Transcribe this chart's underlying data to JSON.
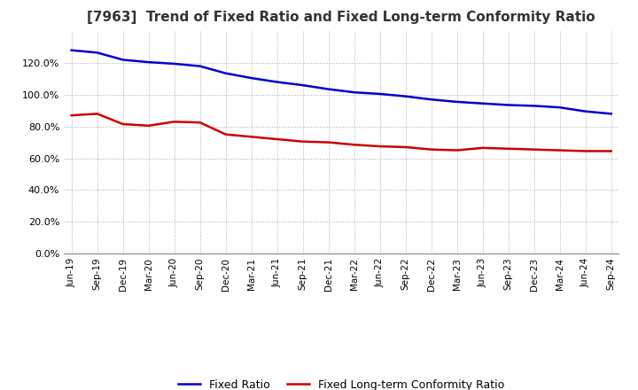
{
  "title": "[7963]  Trend of Fixed Ratio and Fixed Long-term Conformity Ratio",
  "title_fontsize": 11,
  "background_color": "#ffffff",
  "plot_bg_color": "#ffffff",
  "grid_color": "#aaaaaa",
  "fixed_ratio_color": "#0000cc",
  "fixed_lt_color": "#cc0000",
  "x_labels": [
    "Jun-19",
    "Sep-19",
    "Dec-19",
    "Mar-20",
    "Jun-20",
    "Sep-20",
    "Dec-20",
    "Mar-21",
    "Jun-21",
    "Sep-21",
    "Dec-21",
    "Mar-22",
    "Jun-22",
    "Sep-22",
    "Dec-22",
    "Mar-23",
    "Jun-23",
    "Sep-23",
    "Dec-23",
    "Mar-24",
    "Jun-24",
    "Sep-24"
  ],
  "fixed_ratio": [
    128.0,
    126.5,
    122.0,
    120.5,
    119.5,
    118.0,
    113.5,
    110.5,
    108.0,
    106.0,
    103.5,
    101.5,
    100.5,
    99.0,
    97.0,
    95.5,
    94.5,
    93.5,
    93.0,
    92.0,
    89.5,
    88.0
  ],
  "fixed_lt_ratio": [
    87.0,
    88.0,
    81.5,
    80.5,
    83.0,
    82.5,
    75.0,
    73.5,
    72.0,
    70.5,
    70.0,
    68.5,
    67.5,
    67.0,
    65.5,
    65.0,
    66.5,
    66.0,
    65.5,
    65.0,
    64.5,
    64.5
  ],
  "ylim": [
    0,
    140
  ],
  "yticks": [
    0,
    20,
    40,
    60,
    80,
    100,
    120
  ],
  "line_width": 1.8
}
